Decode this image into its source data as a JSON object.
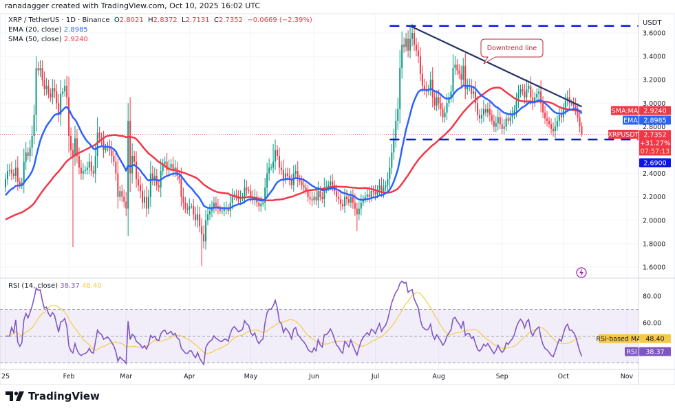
{
  "credit": "ranadagger created with TradingView.com, Oct 10, 2025 16:02 UTC",
  "legend": {
    "symbol": "XRP / TetherUS · 1D · Binance",
    "open_label": "O",
    "open": "2.8021",
    "high_label": "H",
    "high": "2.8372",
    "low_label": "L",
    "low": "2.7131",
    "close_label": "C",
    "close": "2.7352",
    "change": "−0.0669 (−2.39%)",
    "ema_label": "EMA (20, close)",
    "ema_value": "2.8985",
    "sma_label": "SMA (50, close)",
    "sma_value": "2.9240"
  },
  "rsi_legend": {
    "label": "RSI (14, close)",
    "rsi_value": "38.37",
    "ma_value": "48.40"
  },
  "price_axis": {
    "currency": "USDT",
    "ticks": [
      "3.6000",
      "3.4000",
      "3.2000",
      "3.0000",
      "2.8000",
      "2.4000",
      "2.2000",
      "2.0000",
      "1.8000",
      "1.6000"
    ],
    "tags": {
      "sma_name": "SMA:MA",
      "sma_value": "2.9240",
      "ema_name": "EMA",
      "ema_value": "2.8985",
      "symbol_name": "XRPUSDT",
      "last_price": "2.7352",
      "last_change": "+31.27%",
      "countdown": "07:57:13",
      "support_value": "2.6900"
    }
  },
  "rsi_axis": {
    "ticks": [
      "80.00",
      "60.00"
    ],
    "ma_name": "RSI-based MA",
    "ma_value": "48.40",
    "rsi_name": "RSI",
    "rsi_value": "38.37"
  },
  "time_axis": [
    "25",
    "Feb",
    "Mar",
    "Apr",
    "May",
    "Jun",
    "Jul",
    "Aug",
    "Sep",
    "Oct",
    "Nov"
  ],
  "annotation": {
    "callout": "Downtrend line"
  },
  "brand": "TradingView",
  "colors": {
    "up": "#089981",
    "down": "#f23645",
    "ema": "#2962ff",
    "sma": "#f23645",
    "levels": "#0a14e6",
    "trendline": "#263466",
    "rsi": "#7e57c2",
    "rsi_ma": "#f7c948"
  },
  "chart_data": {
    "type": "candlestick",
    "symbol": "XRP / TetherUS",
    "interval": "1D",
    "ylim": [
      1.5,
      3.75
    ],
    "rsi_ylim": [
      20,
      95
    ],
    "grid": true,
    "indicators": [
      "EMA 20 close",
      "SMA 50 close",
      "RSI 14 close",
      "RSI-based MA 14"
    ],
    "first_open": 2.28,
    "daily_close": {
      "2025-01": [
        2.35,
        2.42,
        2.43,
        2.4,
        2.38,
        2.45,
        2.33,
        2.3,
        2.32,
        2.5,
        2.58,
        2.55,
        2.62,
        2.72,
        2.9,
        3.3,
        3.28,
        3.3,
        3.2,
        3.12,
        3.15,
        3.08,
        3.05,
        3.13,
        3.1,
        3.0,
        2.9,
        3.08,
        3.1,
        3.15,
        3.05
      ],
      "2025-02": [
        2.72,
        2.6,
        2.55,
        2.7,
        2.55,
        2.45,
        2.4,
        2.42,
        2.43,
        2.45,
        2.5,
        2.42,
        2.4,
        2.55,
        2.75,
        2.7,
        2.68,
        2.6,
        2.62,
        2.63,
        2.6,
        2.55,
        2.5,
        2.4,
        2.2,
        2.25,
        2.2,
        2.16
      ],
      "2025-03": [
        2.1,
        2.85,
        2.4,
        2.55,
        2.5,
        2.35,
        2.3,
        2.25,
        2.15,
        2.2,
        2.1,
        2.2,
        2.4,
        2.35,
        2.38,
        2.3,
        2.28,
        2.42,
        2.48,
        2.5,
        2.43,
        2.45,
        2.48,
        2.42,
        2.45,
        2.38,
        2.35,
        2.2,
        2.15,
        2.1,
        2.09
      ],
      "2025-04": [
        2.12,
        2.12,
        2.05,
        2.0,
        2.05,
        1.95,
        1.88,
        1.82,
        2.0,
        2.05,
        2.08,
        2.1,
        2.15,
        2.12,
        2.1,
        2.08,
        2.08,
        2.1,
        2.1,
        2.08,
        2.15,
        2.2,
        2.22,
        2.2,
        2.18,
        2.19,
        2.2,
        2.28,
        2.26,
        2.25
      ],
      "2025-05": [
        2.2,
        2.18,
        2.2,
        2.15,
        2.12,
        2.14,
        2.15,
        2.28,
        2.4,
        2.45,
        2.45,
        2.5,
        2.6,
        2.55,
        2.45,
        2.43,
        2.35,
        2.4,
        2.38,
        2.35,
        2.3,
        2.4,
        2.42,
        2.35,
        2.33,
        2.3,
        2.28,
        2.25,
        2.2,
        2.18,
        2.17
      ],
      "2025-06": [
        2.2,
        2.17,
        2.25,
        2.2,
        2.18,
        2.28,
        2.28,
        2.3,
        2.33,
        2.3,
        2.25,
        2.2,
        2.18,
        2.14,
        2.12,
        2.2,
        2.18,
        2.15,
        2.2,
        2.15,
        2.1,
        2.05,
        2.1,
        2.15,
        2.18,
        2.2,
        2.22,
        2.2,
        2.25,
        2.24
      ],
      "2025-07": [
        2.22,
        2.26,
        2.3,
        2.25,
        2.28,
        2.3,
        2.35,
        2.45,
        2.58,
        2.7,
        2.85,
        2.95,
        3.3,
        3.5,
        3.48,
        3.55,
        3.45,
        3.55,
        3.6,
        3.5,
        3.45,
        3.4,
        3.25,
        3.15,
        3.12,
        3.1,
        3.12,
        3.2,
        3.05,
        2.98,
        3.05
      ],
      "2025-08": [
        3.0,
        2.95,
        2.88,
        2.92,
        3.0,
        3.05,
        3.1,
        3.3,
        3.33,
        3.28,
        3.25,
        3.2,
        3.32,
        3.12,
        3.15,
        3.15,
        3.08,
        3.1,
        3.0,
        2.9,
        2.87,
        2.9,
        2.95,
        2.92,
        2.95,
        2.9,
        2.85,
        2.8,
        2.83,
        2.88,
        2.82
      ],
      "2025-09": [
        2.78,
        2.8,
        2.87,
        2.85,
        2.88,
        2.9,
        2.94,
        3.02,
        3.08,
        3.12,
        3.1,
        3.05,
        3.12,
        3.15,
        3.05,
        3.0,
        3.05,
        3.08,
        3.1,
        3.0,
        2.92,
        2.87,
        2.85,
        2.82,
        2.78,
        2.76,
        2.8,
        2.85,
        2.9,
        2.88
      ],
      "2025-10": [
        2.95,
        3.02,
        3.05,
        3.0,
        3.0,
        2.98,
        2.95,
        2.88,
        2.8021,
        2.7352
      ]
    },
    "extremes": [
      {
        "date": "2025-01-16",
        "high": 3.4
      },
      {
        "date": "2025-02-03",
        "low": 1.77
      },
      {
        "date": "2025-03-02",
        "high": 3.0
      },
      {
        "date": "2025-04-07",
        "low": 1.61
      },
      {
        "date": "2025-05-12",
        "high": 2.65
      },
      {
        "date": "2025-06-22",
        "low": 1.91
      },
      {
        "date": "2025-07-18",
        "high": 3.66
      },
      {
        "date": "2025-10-10",
        "high": 2.8372,
        "low": 2.7131
      }
    ],
    "horizontal_levels": [
      3.66,
      2.69
    ],
    "trendline": {
      "from": {
        "date": "2025-07-18",
        "price": 3.66
      },
      "to": {
        "date": "2025-10-10",
        "price": 2.97
      }
    },
    "rsi_levels": [
      70,
      50,
      30
    ],
    "last": {
      "ema20": 2.8985,
      "sma50": 2.924,
      "rsi": 38.37,
      "rsi_ma": 48.4
    }
  }
}
